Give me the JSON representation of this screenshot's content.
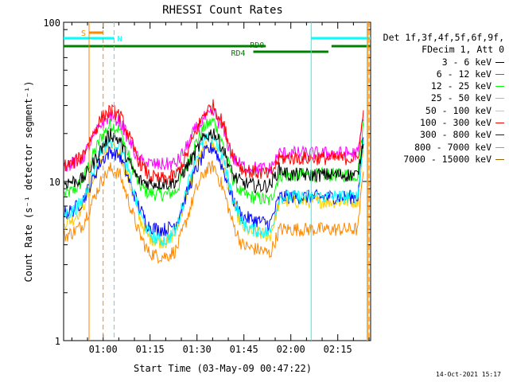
{
  "chart_data": {
    "type": "line",
    "title": "RHESSI Count Rates",
    "xlabel": "Start Time (03-May-09 00:47:22)",
    "ylabel": "Count Rate (s⁻¹ detector segment⁻¹)",
    "x_ticks": [
      "01:00",
      "01:15",
      "01:30",
      "01:45",
      "02:00",
      "02:15"
    ],
    "y_ticks": [
      "1",
      "10",
      "100"
    ],
    "y_scale": "log",
    "xlim": [
      "00:47:22",
      "02:25:30"
    ],
    "ylim": [
      1,
      100
    ],
    "x_start": "00:47:22",
    "x_step_minutes": 3,
    "legend_header": [
      "Det 1f,3f,4f,5f,6f,9f,",
      "FDecim 1, Att 0"
    ],
    "legend_position": "right",
    "series": [
      {
        "name": "3 - 6 keV",
        "color": "#000000",
        "values": [
          9.8,
          10,
          10.3,
          12.5,
          16,
          20,
          18,
          13,
          10.2,
          9.8,
          9.7,
          9.7,
          10,
          12,
          15,
          19,
          20.5,
          16,
          11,
          9.8,
          9.5,
          9.3,
          9.5,
          12,
          11,
          11,
          11,
          11,
          11,
          11,
          11,
          11,
          11,
          20
        ]
      },
      {
        "name": "6 - 12 keV",
        "color": "#ff00ff",
        "values": [
          12.5,
          13,
          14,
          18,
          23,
          26,
          24,
          18,
          13.5,
          13,
          12.7,
          12.8,
          13,
          16,
          21,
          25,
          27,
          21,
          14,
          12.5,
          12.3,
          12,
          12,
          15,
          15,
          15,
          15,
          15,
          15,
          15,
          15,
          15,
          15,
          28
        ]
      },
      {
        "name": "12 - 25 keV",
        "color": "#00ff00",
        "values": [
          8.3,
          8.7,
          10,
          14,
          19,
          23,
          21,
          14,
          9.5,
          8.5,
          8.3,
          8.3,
          8.7,
          12,
          17,
          22,
          24,
          17,
          10.5,
          8.3,
          8,
          7.8,
          7.5,
          11,
          11,
          11,
          11,
          11,
          11,
          11,
          11,
          11,
          11,
          26
        ]
      },
      {
        "name": "25 - 50 keV",
        "color": "#00ffff",
        "values": [
          6.2,
          6.5,
          7.5,
          11,
          16,
          18,
          17,
          11,
          6.5,
          4.8,
          4.3,
          4.3,
          5,
          8.5,
          14,
          18,
          19,
          14,
          8,
          5.5,
          5,
          4.9,
          4.7,
          8,
          8,
          8,
          8,
          8,
          8,
          8,
          8,
          8,
          8,
          20
        ]
      },
      {
        "name": "50 - 100 keV",
        "color": "#ffcc00",
        "values": [
          5.5,
          5.8,
          6.8,
          9.5,
          14,
          16,
          15,
          10,
          6,
          4.5,
          4.2,
          4.2,
          4.8,
          8,
          12,
          16,
          17,
          12.5,
          7.5,
          5.2,
          4.8,
          4.7,
          4.5,
          7.5,
          7.5,
          7.5,
          7.5,
          7.5,
          7.5,
          7.5,
          7.5,
          7.5,
          7.5,
          19
        ]
      },
      {
        "name": "100 - 300 keV",
        "color": "#ff0000",
        "values": [
          12.5,
          13,
          14.5,
          19,
          25,
          28,
          26,
          19,
          13.5,
          11,
          10.4,
          10.4,
          11,
          14,
          20,
          27,
          30,
          23,
          15,
          12,
          11.5,
          11.3,
          11,
          14,
          14,
          14,
          14,
          14,
          14,
          14,
          14,
          14,
          14,
          30
        ]
      },
      {
        "name": "300 - 800 keV",
        "color": "#0000ff",
        "values": [
          6.3,
          6.6,
          7.5,
          10,
          13.5,
          15.5,
          14.5,
          10,
          7,
          5.3,
          5,
          5,
          5.5,
          8,
          11.5,
          15,
          16.5,
          12,
          7.8,
          6,
          5.8,
          5.6,
          5.4,
          8,
          8,
          8,
          8,
          8,
          8,
          8,
          8,
          8,
          8,
          22
        ]
      },
      {
        "name": "800 - 7000 keV",
        "color": "#ff8800",
        "values": [
          4.5,
          4.8,
          5.3,
          7.3,
          10,
          12,
          11,
          7.3,
          4.8,
          3.6,
          3.4,
          3.4,
          3.7,
          5.5,
          8.5,
          11.5,
          12.5,
          9,
          5.5,
          4,
          3.8,
          3.7,
          3.5,
          5,
          5,
          5,
          5,
          5,
          5,
          5,
          5,
          5,
          5,
          14
        ]
      },
      {
        "name": "7000 - 15000 keV",
        "color": "#996600",
        "values": [
          null,
          null,
          null,
          null,
          null,
          null,
          null,
          null,
          null,
          null,
          null,
          null,
          null,
          null,
          null,
          null,
          null,
          null,
          null,
          null,
          null,
          null,
          null,
          null,
          null,
          null,
          null,
          null,
          null,
          null,
          null,
          null,
          null,
          null
        ]
      }
    ],
    "annotations": {
      "flags": [
        {
          "label": "S",
          "color": "#ff8800",
          "start": "00:55:30",
          "end": "01:00:00"
        },
        {
          "label": "N",
          "color": "#00ffff",
          "start": "00:47:22",
          "end": "01:03:30"
        },
        {
          "label": "N",
          "color": "#00ffff",
          "start": "02:06:30",
          "end": "02:25:30"
        },
        {
          "label": "RD0",
          "color": "#008000",
          "start": "00:47:22",
          "end": "01:52:00"
        },
        {
          "label": "RD4",
          "color": "#008000",
          "start": "01:48:00",
          "end": "02:12:00"
        },
        {
          "label": "RD0",
          "color": "#008000",
          "start": "02:13:00",
          "end": "02:25:30"
        }
      ],
      "vlines": [
        {
          "color": "#ff8800",
          "style": "solid",
          "time": "00:55:30"
        },
        {
          "color": "#ff8800",
          "style": "dashed",
          "time": "01:00:00"
        },
        {
          "color": "#00ffff",
          "style": "dashed",
          "time": "01:03:30"
        },
        {
          "color": "#00ffff",
          "style": "solid",
          "time": "02:06:30"
        },
        {
          "color": "#ff8800",
          "style": "solid",
          "time": "02:24:40"
        },
        {
          "color": "#ff8800",
          "style": "dashed",
          "time": "02:25:00"
        },
        {
          "color": "#00ffff",
          "style": "solid",
          "time": "02:24:20"
        }
      ]
    }
  },
  "footer": {
    "timestamp": "14-Oct-2021 15:17"
  }
}
